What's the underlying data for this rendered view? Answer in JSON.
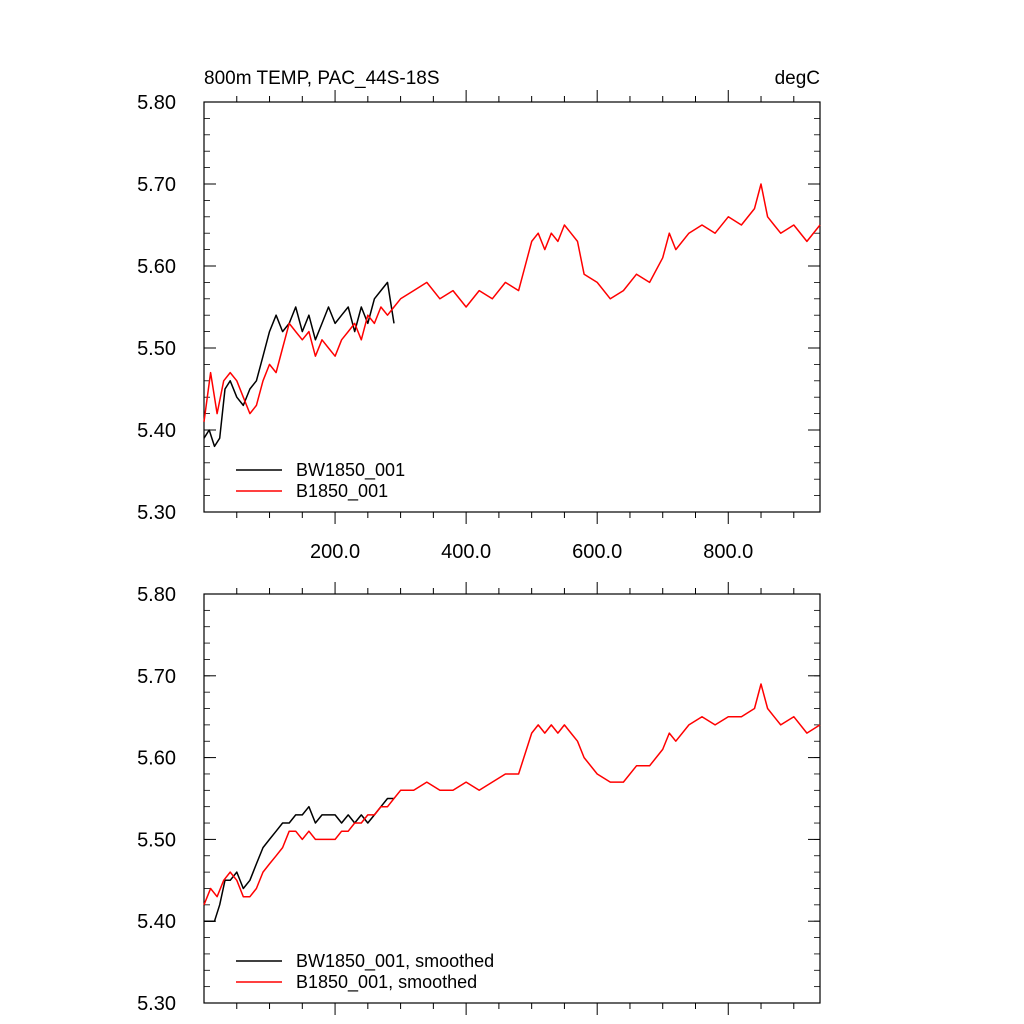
{
  "colors": {
    "series_bw": "#000000",
    "series_b": "#ff0000"
  },
  "chart_data": [
    {
      "type": "line",
      "title": "800m TEMP, PAC_44S-18S",
      "units": "degC",
      "xlim": [
        0,
        940
      ],
      "ylim": [
        5.3,
        5.8
      ],
      "x_ticks": [
        200,
        400,
        600,
        800
      ],
      "x_tick_labels": [
        "200.0",
        "400.0",
        "600.0",
        "800.0"
      ],
      "y_ticks": [
        5.3,
        5.4,
        5.5,
        5.6,
        5.7,
        5.8
      ],
      "y_tick_labels": [
        "5.30",
        "5.40",
        "5.50",
        "5.60",
        "5.70",
        "5.80"
      ],
      "legend_position": "bottom-left",
      "series": [
        {
          "name": "BW1850_001",
          "color": "#000000",
          "x": [
            0,
            8,
            16,
            24,
            32,
            40,
            50,
            60,
            70,
            80,
            90,
            100,
            110,
            120,
            130,
            140,
            150,
            160,
            170,
            180,
            190,
            200,
            210,
            220,
            230,
            240,
            250,
            260,
            270,
            280,
            290
          ],
          "y": [
            5.39,
            5.4,
            5.38,
            5.39,
            5.45,
            5.46,
            5.44,
            5.43,
            5.45,
            5.46,
            5.49,
            5.52,
            5.54,
            5.52,
            5.53,
            5.55,
            5.52,
            5.54,
            5.51,
            5.53,
            5.55,
            5.53,
            5.54,
            5.55,
            5.52,
            5.55,
            5.53,
            5.56,
            5.57,
            5.58,
            5.53
          ]
        },
        {
          "name": "B1850_001",
          "color": "#ff0000",
          "x": [
            0,
            10,
            20,
            30,
            40,
            50,
            60,
            70,
            80,
            90,
            100,
            110,
            120,
            130,
            140,
            150,
            160,
            170,
            180,
            190,
            200,
            210,
            220,
            230,
            240,
            250,
            260,
            270,
            280,
            290,
            300,
            320,
            340,
            360,
            380,
            400,
            420,
            440,
            460,
            480,
            500,
            510,
            520,
            530,
            540,
            550,
            560,
            570,
            580,
            600,
            620,
            640,
            660,
            680,
            700,
            710,
            720,
            740,
            760,
            780,
            800,
            820,
            840,
            850,
            860,
            870,
            880,
            900,
            920,
            940
          ],
          "y": [
            5.41,
            5.47,
            5.42,
            5.46,
            5.47,
            5.46,
            5.44,
            5.42,
            5.43,
            5.46,
            5.48,
            5.47,
            5.5,
            5.53,
            5.52,
            5.51,
            5.52,
            5.49,
            5.51,
            5.5,
            5.49,
            5.51,
            5.52,
            5.53,
            5.51,
            5.54,
            5.53,
            5.55,
            5.54,
            5.55,
            5.56,
            5.57,
            5.58,
            5.56,
            5.57,
            5.55,
            5.57,
            5.56,
            5.58,
            5.57,
            5.63,
            5.64,
            5.62,
            5.64,
            5.63,
            5.65,
            5.64,
            5.63,
            5.59,
            5.58,
            5.56,
            5.57,
            5.59,
            5.58,
            5.61,
            5.64,
            5.62,
            5.64,
            5.65,
            5.64,
            5.66,
            5.65,
            5.67,
            5.7,
            5.66,
            5.65,
            5.64,
            5.65,
            5.63,
            5.65
          ]
        }
      ]
    },
    {
      "type": "line",
      "xlim": [
        0,
        940
      ],
      "ylim": [
        5.3,
        5.8
      ],
      "y_ticks": [
        5.3,
        5.4,
        5.5,
        5.6,
        5.7,
        5.8
      ],
      "y_tick_labels": [
        "5.30",
        "5.40",
        "5.50",
        "5.60",
        "5.70",
        "5.80"
      ],
      "legend_position": "bottom-left",
      "series": [
        {
          "name": "BW1850_001, smoothed",
          "color": "#000000",
          "x": [
            0,
            8,
            16,
            24,
            32,
            40,
            50,
            60,
            70,
            80,
            90,
            100,
            110,
            120,
            130,
            140,
            150,
            160,
            170,
            180,
            190,
            200,
            210,
            220,
            230,
            240,
            250,
            260,
            270,
            280,
            290
          ],
          "y": [
            5.4,
            5.4,
            5.4,
            5.42,
            5.45,
            5.45,
            5.46,
            5.44,
            5.45,
            5.47,
            5.49,
            5.5,
            5.51,
            5.52,
            5.52,
            5.53,
            5.53,
            5.54,
            5.52,
            5.53,
            5.53,
            5.53,
            5.52,
            5.53,
            5.52,
            5.53,
            5.52,
            5.53,
            5.54,
            5.55,
            5.55
          ]
        },
        {
          "name": "B1850_001, smoothed",
          "color": "#ff0000",
          "x": [
            0,
            10,
            20,
            30,
            40,
            50,
            60,
            70,
            80,
            90,
            100,
            110,
            120,
            130,
            140,
            150,
            160,
            170,
            180,
            190,
            200,
            210,
            220,
            230,
            240,
            250,
            260,
            270,
            280,
            290,
            300,
            320,
            340,
            360,
            380,
            400,
            420,
            440,
            460,
            480,
            500,
            510,
            520,
            530,
            540,
            550,
            560,
            570,
            580,
            600,
            620,
            640,
            660,
            680,
            700,
            710,
            720,
            740,
            760,
            780,
            800,
            820,
            840,
            850,
            860,
            870,
            880,
            900,
            920,
            940
          ],
          "y": [
            5.42,
            5.44,
            5.43,
            5.45,
            5.46,
            5.45,
            5.43,
            5.43,
            5.44,
            5.46,
            5.47,
            5.48,
            5.49,
            5.51,
            5.51,
            5.5,
            5.51,
            5.5,
            5.5,
            5.5,
            5.5,
            5.51,
            5.51,
            5.52,
            5.52,
            5.53,
            5.53,
            5.54,
            5.54,
            5.55,
            5.56,
            5.56,
            5.57,
            5.56,
            5.56,
            5.57,
            5.56,
            5.57,
            5.58,
            5.58,
            5.63,
            5.64,
            5.63,
            5.64,
            5.63,
            5.64,
            5.63,
            5.62,
            5.6,
            5.58,
            5.57,
            5.57,
            5.59,
            5.59,
            5.61,
            5.63,
            5.62,
            5.64,
            5.65,
            5.64,
            5.65,
            5.65,
            5.66,
            5.69,
            5.66,
            5.65,
            5.64,
            5.65,
            5.63,
            5.64
          ]
        }
      ]
    }
  ]
}
